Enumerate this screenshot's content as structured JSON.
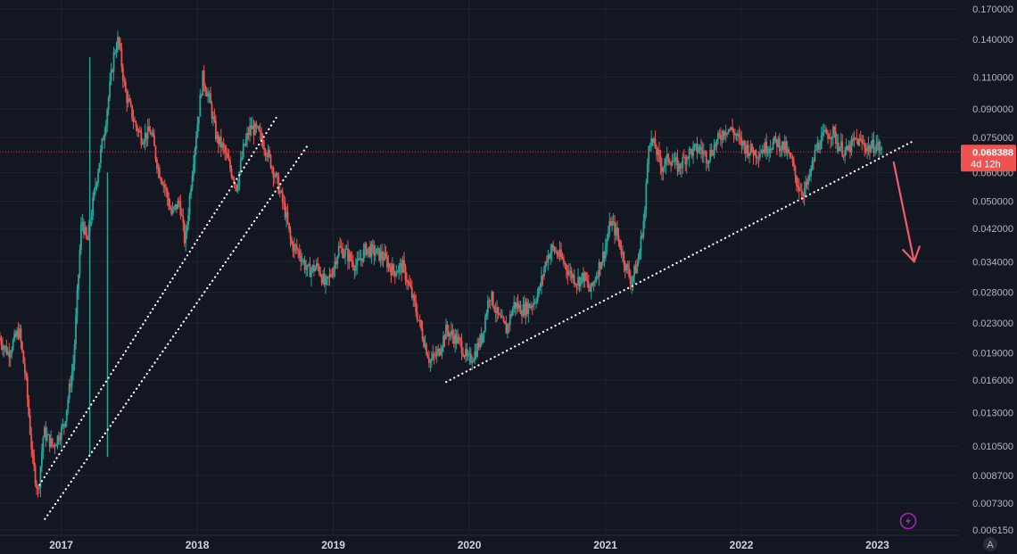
{
  "chart_data": {
    "type": "candlestick",
    "scale": "log",
    "grid": true,
    "y_ticks": [
      "0.170000",
      "0.140000",
      "0.110000",
      "0.090000",
      "0.075000",
      "0.060000",
      "0.050000",
      "0.042000",
      "0.034000",
      "0.028000",
      "0.023000",
      "0.019000",
      "0.016000",
      "0.013000",
      "0.010500",
      "0.008700",
      "0.007300",
      "0.006150"
    ],
    "x_ticks": [
      "2017",
      "2018",
      "2019",
      "2020",
      "2021",
      "2022",
      "2023"
    ],
    "ylim": [
      0.00595,
      0.18
    ],
    "xlim": [
      2016.55,
      2023.6
    ],
    "last_price": "0.068388",
    "countdown": "4d 12h",
    "axis_mode_label": "A",
    "colors": {
      "up": "#26a69a",
      "down": "#ef5350",
      "background": "#131722",
      "grid": "#1f2330",
      "trendline": "#ffffff",
      "arrow": "#f05a6a",
      "badge": "#9c27b0"
    },
    "price_path": [
      [
        2016.55,
        0.021
      ],
      [
        2016.62,
        0.019
      ],
      [
        2016.7,
        0.022
      ],
      [
        2016.75,
        0.016
      ],
      [
        2016.8,
        0.0095
      ],
      [
        2016.84,
        0.0078
      ],
      [
        2016.88,
        0.0115
      ],
      [
        2016.95,
        0.0105
      ],
      [
        2017.03,
        0.012
      ],
      [
        2017.1,
        0.018
      ],
      [
        2017.16,
        0.045
      ],
      [
        2017.2,
        0.038
      ],
      [
        2017.26,
        0.055
      ],
      [
        2017.33,
        0.08
      ],
      [
        2017.4,
        0.13
      ],
      [
        2017.43,
        0.14
      ],
      [
        2017.48,
        0.1
      ],
      [
        2017.55,
        0.082
      ],
      [
        2017.6,
        0.075
      ],
      [
        2017.67,
        0.078
      ],
      [
        2017.72,
        0.062
      ],
      [
        2017.77,
        0.055
      ],
      [
        2017.82,
        0.046
      ],
      [
        2017.88,
        0.05
      ],
      [
        2017.92,
        0.038
      ],
      [
        2017.98,
        0.065
      ],
      [
        2018.05,
        0.11
      ],
      [
        2018.1,
        0.095
      ],
      [
        2018.15,
        0.075
      ],
      [
        2018.2,
        0.07
      ],
      [
        2018.25,
        0.062
      ],
      [
        2018.3,
        0.055
      ],
      [
        2018.35,
        0.07
      ],
      [
        2018.4,
        0.08
      ],
      [
        2018.45,
        0.078
      ],
      [
        2018.5,
        0.072
      ],
      [
        2018.55,
        0.064
      ],
      [
        2018.6,
        0.056
      ],
      [
        2018.66,
        0.046
      ],
      [
        2018.7,
        0.038
      ],
      [
        2018.76,
        0.036
      ],
      [
        2018.82,
        0.032
      ],
      [
        2018.9,
        0.033
      ],
      [
        2018.95,
        0.029
      ],
      [
        2019.0,
        0.032
      ],
      [
        2019.05,
        0.037
      ],
      [
        2019.1,
        0.036
      ],
      [
        2019.18,
        0.033
      ],
      [
        2019.25,
        0.037
      ],
      [
        2019.32,
        0.036
      ],
      [
        2019.38,
        0.035
      ],
      [
        2019.45,
        0.032
      ],
      [
        2019.52,
        0.033
      ],
      [
        2019.58,
        0.028
      ],
      [
        2019.63,
        0.024
      ],
      [
        2019.67,
        0.021
      ],
      [
        2019.72,
        0.018
      ],
      [
        2019.78,
        0.019
      ],
      [
        2019.84,
        0.022
      ],
      [
        2019.9,
        0.021
      ],
      [
        2019.95,
        0.02
      ],
      [
        2020.0,
        0.018
      ],
      [
        2020.05,
        0.019
      ],
      [
        2020.1,
        0.021
      ],
      [
        2020.16,
        0.028
      ],
      [
        2020.22,
        0.024
      ],
      [
        2020.28,
        0.022
      ],
      [
        2020.34,
        0.026
      ],
      [
        2020.4,
        0.025
      ],
      [
        2020.47,
        0.026
      ],
      [
        2020.52,
        0.028
      ],
      [
        2020.58,
        0.035
      ],
      [
        2020.62,
        0.037
      ],
      [
        2020.68,
        0.035
      ],
      [
        2020.74,
        0.032
      ],
      [
        2020.8,
        0.03
      ],
      [
        2020.85,
        0.031
      ],
      [
        2020.9,
        0.028
      ],
      [
        2020.95,
        0.032
      ],
      [
        2021.0,
        0.036
      ],
      [
        2021.05,
        0.044
      ],
      [
        2021.1,
        0.04
      ],
      [
        2021.15,
        0.034
      ],
      [
        2021.2,
        0.03
      ],
      [
        2021.25,
        0.034
      ],
      [
        2021.3,
        0.047
      ],
      [
        2021.33,
        0.075
      ],
      [
        2021.38,
        0.07
      ],
      [
        2021.42,
        0.062
      ],
      [
        2021.48,
        0.066
      ],
      [
        2021.55,
        0.062
      ],
      [
        2021.62,
        0.068
      ],
      [
        2021.7,
        0.07
      ],
      [
        2021.76,
        0.066
      ],
      [
        2021.82,
        0.072
      ],
      [
        2021.9,
        0.08
      ],
      [
        2021.95,
        0.078
      ],
      [
        2022.0,
        0.073
      ],
      [
        2022.05,
        0.07
      ],
      [
        2022.12,
        0.068
      ],
      [
        2022.2,
        0.071
      ],
      [
        2022.27,
        0.073
      ],
      [
        2022.33,
        0.07
      ],
      [
        2022.38,
        0.064
      ],
      [
        2022.42,
        0.056
      ],
      [
        2022.46,
        0.053
      ],
      [
        2022.5,
        0.056
      ],
      [
        2022.56,
        0.07
      ],
      [
        2022.62,
        0.076
      ],
      [
        2022.68,
        0.078
      ],
      [
        2022.72,
        0.072
      ],
      [
        2022.78,
        0.068
      ],
      [
        2022.85,
        0.074
      ],
      [
        2022.9,
        0.072
      ],
      [
        2022.95,
        0.07
      ],
      [
        2023.0,
        0.072
      ],
      [
        2023.04,
        0.068388
      ]
    ],
    "trendlines": [
      {
        "from": [
          2016.84,
          0.0082
        ],
        "to": [
          2018.58,
          0.085
        ]
      },
      {
        "from": [
          2016.88,
          0.0066
        ],
        "to": [
          2018.82,
          0.072
        ]
      },
      {
        "from": [
          2019.83,
          0.0158
        ],
        "to": [
          2023.27,
          0.0735
        ]
      }
    ],
    "arrow": {
      "from": [
        2023.12,
        0.064
      ],
      "to": [
        2023.27,
        0.034
      ]
    }
  }
}
